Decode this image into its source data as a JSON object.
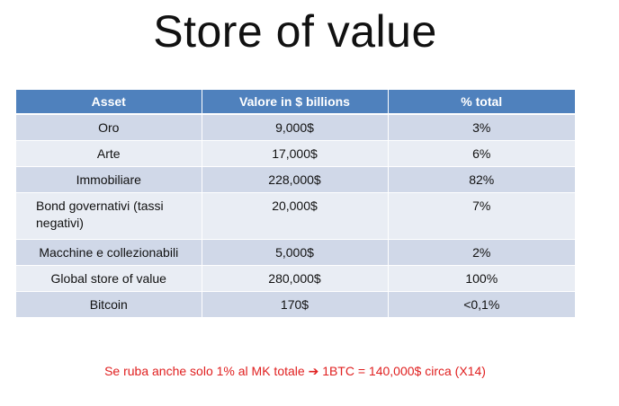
{
  "slide": {
    "title": "Store of value",
    "footer_before_arrow": "Se ruba anche solo 1% al MK totale",
    "footer_arrow": "➔",
    "footer_after_arrow": "1BTC = 140,000$ circa (X14)"
  },
  "table": {
    "headers": [
      "Asset",
      "Valore in $ billions",
      "% total"
    ],
    "rows": [
      [
        "Oro",
        "9,000$",
        "3%"
      ],
      [
        "Arte",
        "17,000$",
        "6%"
      ],
      [
        "Immobiliare",
        "228,000$",
        "82%"
      ],
      [
        "Bond governativi (tassi negativi)",
        "20,000$",
        "7%"
      ],
      [
        "Macchine e collezionabili",
        "5,000$",
        "2%"
      ],
      [
        "Global store of value",
        "280,000$",
        "100%"
      ],
      [
        "Bitcoin",
        "170$",
        "<0,1%"
      ]
    ]
  },
  "colors": {
    "header_bg": "#4f81bd",
    "row_odd": "#d0d8e8",
    "row_even": "#e9edf4",
    "footer_text": "#e02020"
  }
}
